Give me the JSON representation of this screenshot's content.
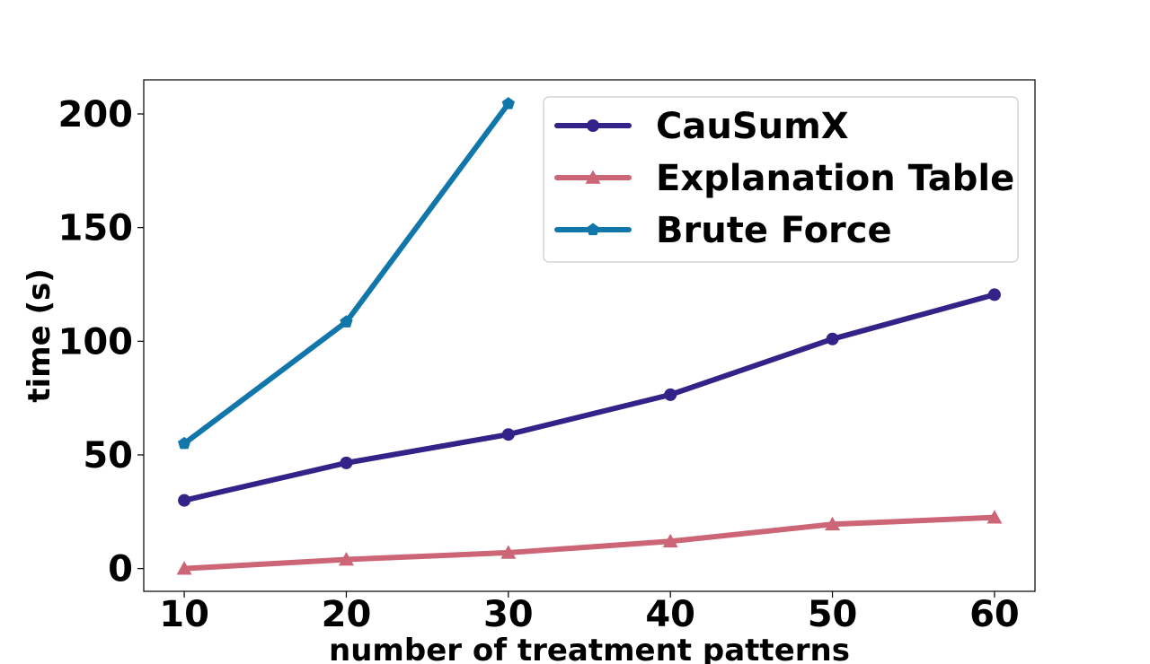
{
  "chart_data": {
    "type": "line",
    "title": "",
    "xlabel": "number of treatment patterns",
    "ylabel": "time (s)",
    "xlim": [
      7.5,
      62.5
    ],
    "ylim": [
      -10,
      215
    ],
    "xticks": [
      10,
      20,
      30,
      40,
      50,
      60
    ],
    "yticks": [
      0,
      50,
      100,
      150,
      200
    ],
    "grid": false,
    "legend_position": "top-right",
    "series": [
      {
        "name": "CauSumX",
        "color": "#332288",
        "marker": "circle",
        "x": [
          10,
          20,
          30,
          40,
          50,
          60
        ],
        "y": [
          30,
          46.5,
          59,
          76.5,
          101,
          120.5
        ]
      },
      {
        "name": "Explanation Table",
        "color": "#CC6677",
        "marker": "triangle",
        "x": [
          10,
          20,
          30,
          40,
          50,
          60
        ],
        "y": [
          0,
          4,
          7,
          12,
          19.5,
          22.5
        ]
      },
      {
        "name": "Brute Force",
        "color": "#1177AA",
        "marker": "pentagon",
        "x": [
          10,
          20,
          30
        ],
        "y": [
          55,
          108.5,
          204.5
        ]
      }
    ]
  }
}
